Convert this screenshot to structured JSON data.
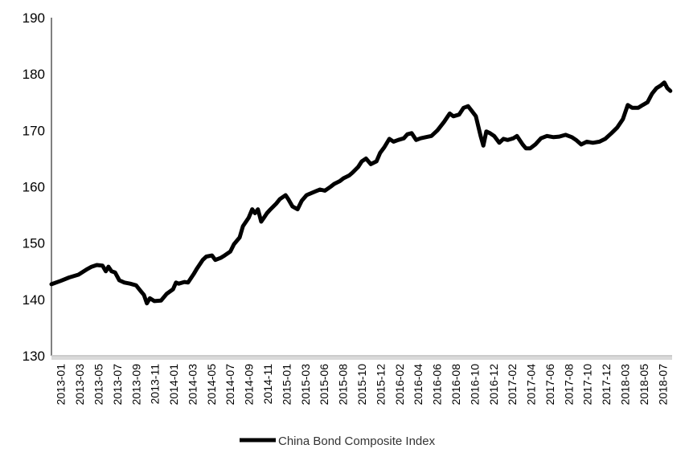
{
  "chart_data": {
    "type": "line",
    "title": "",
    "xlabel": "",
    "ylabel": "",
    "ylim": [
      130,
      190
    ],
    "yticks": [
      130,
      140,
      150,
      160,
      170,
      180,
      190
    ],
    "xtick_labels": [
      "2013-01",
      "2013-03",
      "2013-05",
      "2013-07",
      "2013-09",
      "2013-11",
      "2014-01",
      "2014-03",
      "2014-05",
      "2014-07",
      "2014-09",
      "2014-11",
      "2015-01",
      "2015-03",
      "2015-06",
      "2015-08",
      "2015-10",
      "2015-12",
      "2016-02",
      "2016-04",
      "2016-06",
      "2016-08",
      "2016-10",
      "2016-12",
      "2017-02",
      "2017-04",
      "2017-06",
      "2017-08",
      "2017-10",
      "2017-12",
      "2018-03",
      "2018-05",
      "2018-07"
    ],
    "grid": false,
    "legend_position": "bottom",
    "series": [
      {
        "name": "China Bond Composite Index",
        "color": "#000000",
        "points": [
          [
            "2013-01-01",
            142.7
          ],
          [
            "2013-02-01",
            143.3
          ],
          [
            "2013-03-01",
            143.9
          ],
          [
            "2013-04-01",
            144.4
          ],
          [
            "2013-05-01",
            145.4
          ],
          [
            "2013-05-15",
            145.8
          ],
          [
            "2013-06-01",
            146.1
          ],
          [
            "2013-06-20",
            146.0
          ],
          [
            "2013-07-01",
            145.0
          ],
          [
            "2013-07-10",
            145.8
          ],
          [
            "2013-07-20",
            145.0
          ],
          [
            "2013-08-01",
            144.8
          ],
          [
            "2013-08-15",
            143.4
          ],
          [
            "2013-09-01",
            143.0
          ],
          [
            "2013-09-20",
            142.8
          ],
          [
            "2013-10-10",
            142.5
          ],
          [
            "2013-10-25",
            141.5
          ],
          [
            "2013-11-05",
            140.8
          ],
          [
            "2013-11-15",
            139.3
          ],
          [
            "2013-11-25",
            140.2
          ],
          [
            "2013-12-10",
            139.7
          ],
          [
            "2014-01-01",
            139.8
          ],
          [
            "2014-01-20",
            141.0
          ],
          [
            "2014-02-10",
            141.8
          ],
          [
            "2014-02-20",
            143.0
          ],
          [
            "2014-03-01",
            142.8
          ],
          [
            "2014-03-20",
            143.1
          ],
          [
            "2014-04-01",
            143.0
          ],
          [
            "2014-04-20",
            144.5
          ],
          [
            "2014-05-01",
            145.5
          ],
          [
            "2014-05-20",
            147.0
          ],
          [
            "2014-06-01",
            147.6
          ],
          [
            "2014-06-20",
            147.8
          ],
          [
            "2014-07-01",
            147.0
          ],
          [
            "2014-07-20",
            147.4
          ],
          [
            "2014-08-01",
            147.8
          ],
          [
            "2014-08-20",
            148.5
          ],
          [
            "2014-09-01",
            149.8
          ],
          [
            "2014-09-20",
            151.0
          ],
          [
            "2014-10-01",
            153.0
          ],
          [
            "2014-10-20",
            154.5
          ],
          [
            "2014-11-01",
            156.0
          ],
          [
            "2014-11-10",
            155.3
          ],
          [
            "2014-11-20",
            156.0
          ],
          [
            "2014-12-01",
            153.8
          ],
          [
            "2014-12-10",
            154.5
          ],
          [
            "2014-12-20",
            155.3
          ],
          [
            "2015-01-01",
            156.0
          ],
          [
            "2015-01-20",
            157.0
          ],
          [
            "2015-02-01",
            157.8
          ],
          [
            "2015-02-20",
            158.5
          ],
          [
            "2015-03-01",
            157.8
          ],
          [
            "2015-03-15",
            156.5
          ],
          [
            "2015-04-01",
            156.0
          ],
          [
            "2015-04-15",
            157.5
          ],
          [
            "2015-05-01",
            158.5
          ],
          [
            "2015-06-01",
            159.2
          ],
          [
            "2015-06-15",
            159.5
          ],
          [
            "2015-07-01",
            159.3
          ],
          [
            "2015-07-20",
            160.0
          ],
          [
            "2015-08-01",
            160.5
          ],
          [
            "2015-08-20",
            161.0
          ],
          [
            "2015-09-01",
            161.5
          ],
          [
            "2015-09-20",
            162.0
          ],
          [
            "2015-10-01",
            162.5
          ],
          [
            "2015-10-20",
            163.5
          ],
          [
            "2015-11-01",
            164.5
          ],
          [
            "2015-11-15",
            165.0
          ],
          [
            "2015-12-01",
            164.0
          ],
          [
            "2015-12-20",
            164.5
          ],
          [
            "2016-01-01",
            166.0
          ],
          [
            "2016-01-15",
            167.0
          ],
          [
            "2016-02-01",
            168.5
          ],
          [
            "2016-02-15",
            168.0
          ],
          [
            "2016-03-01",
            168.3
          ],
          [
            "2016-03-20",
            168.6
          ],
          [
            "2016-04-01",
            169.3
          ],
          [
            "2016-04-15",
            169.5
          ],
          [
            "2016-04-30",
            168.3
          ],
          [
            "2016-05-15",
            168.6
          ],
          [
            "2016-06-01",
            168.8
          ],
          [
            "2016-06-20",
            169.0
          ],
          [
            "2016-07-10",
            170.0
          ],
          [
            "2016-08-01",
            171.5
          ],
          [
            "2016-08-20",
            173.0
          ],
          [
            "2016-09-01",
            172.5
          ],
          [
            "2016-09-20",
            172.8
          ],
          [
            "2016-10-05",
            174.0
          ],
          [
            "2016-10-20",
            174.3
          ],
          [
            "2016-11-01",
            173.5
          ],
          [
            "2016-11-15",
            172.5
          ],
          [
            "2016-12-01",
            169.0
          ],
          [
            "2016-12-10",
            167.3
          ],
          [
            "2016-12-20",
            169.8
          ],
          [
            "2017-01-01",
            169.5
          ],
          [
            "2017-01-15",
            169.0
          ],
          [
            "2017-02-01",
            167.8
          ],
          [
            "2017-02-15",
            168.5
          ],
          [
            "2017-03-01",
            168.3
          ],
          [
            "2017-03-20",
            168.6
          ],
          [
            "2017-04-01",
            169.0
          ],
          [
            "2017-04-20",
            167.5
          ],
          [
            "2017-05-01",
            166.8
          ],
          [
            "2017-05-15",
            166.8
          ],
          [
            "2017-06-01",
            167.5
          ],
          [
            "2017-06-20",
            168.6
          ],
          [
            "2017-07-10",
            169.0
          ],
          [
            "2017-08-01",
            168.8
          ],
          [
            "2017-08-20",
            168.9
          ],
          [
            "2017-09-10",
            169.2
          ],
          [
            "2017-10-01",
            168.8
          ],
          [
            "2017-10-15",
            168.3
          ],
          [
            "2017-11-01",
            167.5
          ],
          [
            "2017-11-20",
            168.0
          ],
          [
            "2017-12-10",
            167.8
          ],
          [
            "2018-01-01",
            168.0
          ],
          [
            "2018-01-20",
            168.5
          ],
          [
            "2018-02-10",
            169.5
          ],
          [
            "2018-03-01",
            170.5
          ],
          [
            "2018-03-20",
            172.0
          ],
          [
            "2018-04-05",
            174.5
          ],
          [
            "2018-04-20",
            174.0
          ],
          [
            "2018-05-10",
            174.0
          ],
          [
            "2018-05-25",
            174.5
          ],
          [
            "2018-06-10",
            175.0
          ],
          [
            "2018-06-25",
            176.5
          ],
          [
            "2018-07-10",
            177.5
          ],
          [
            "2018-07-25",
            178.0
          ],
          [
            "2018-08-05",
            178.5
          ],
          [
            "2018-08-15",
            177.5
          ],
          [
            "2018-08-25",
            177.0
          ]
        ]
      }
    ]
  }
}
